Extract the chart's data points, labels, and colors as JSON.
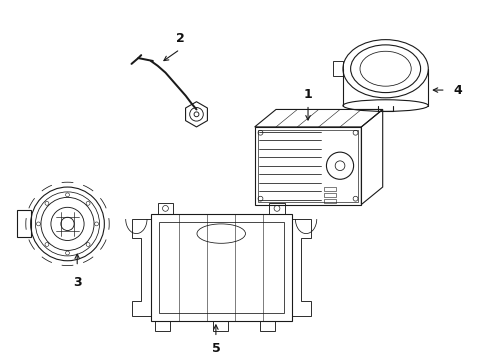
{
  "background_color": "#ffffff",
  "line_color": "#1a1a1a",
  "line_width": 0.8,
  "fig_width": 4.89,
  "fig_height": 3.6,
  "dpi": 100
}
